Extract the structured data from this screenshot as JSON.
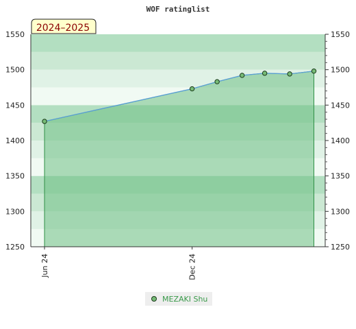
{
  "colors": {
    "band_dark": "#b3dfc1",
    "band_mid": "#cbe8d3",
    "band_light": "#e0f2e6",
    "band_lightest": "#f1faf3",
    "area_fill": "#6fbf85",
    "line": "#5a9fd6",
    "marker_fill": "#77bb77",
    "marker_stroke": "#1a3a1a",
    "season_bg": "#ffffcc"
  },
  "chart_data": {
    "type": "area",
    "title": "WOF ratinglist",
    "season_label": "2024–2025",
    "x_ticks": [
      "Jun 24",
      "Dec 24"
    ],
    "y_ticks": [
      "1250",
      "1300",
      "1350",
      "1400",
      "1450",
      "1500",
      "1550"
    ],
    "ylim": [
      1250,
      1550
    ],
    "xlim": [
      "2024-05-15",
      "2025-05-15"
    ],
    "series": [
      {
        "name": "MEZAKI Shu",
        "points": [
          {
            "x": "2024-06-01",
            "y": 1427
          },
          {
            "x": "2024-12-01",
            "y": 1473
          },
          {
            "x": "2025-01-01",
            "y": 1483
          },
          {
            "x": "2025-02-01",
            "y": 1492
          },
          {
            "x": "2025-03-01",
            "y": 1495
          },
          {
            "x": "2025-04-01",
            "y": 1494
          },
          {
            "x": "2025-05-01",
            "y": 1498
          }
        ]
      }
    ],
    "legend_position": "bottom-center"
  }
}
